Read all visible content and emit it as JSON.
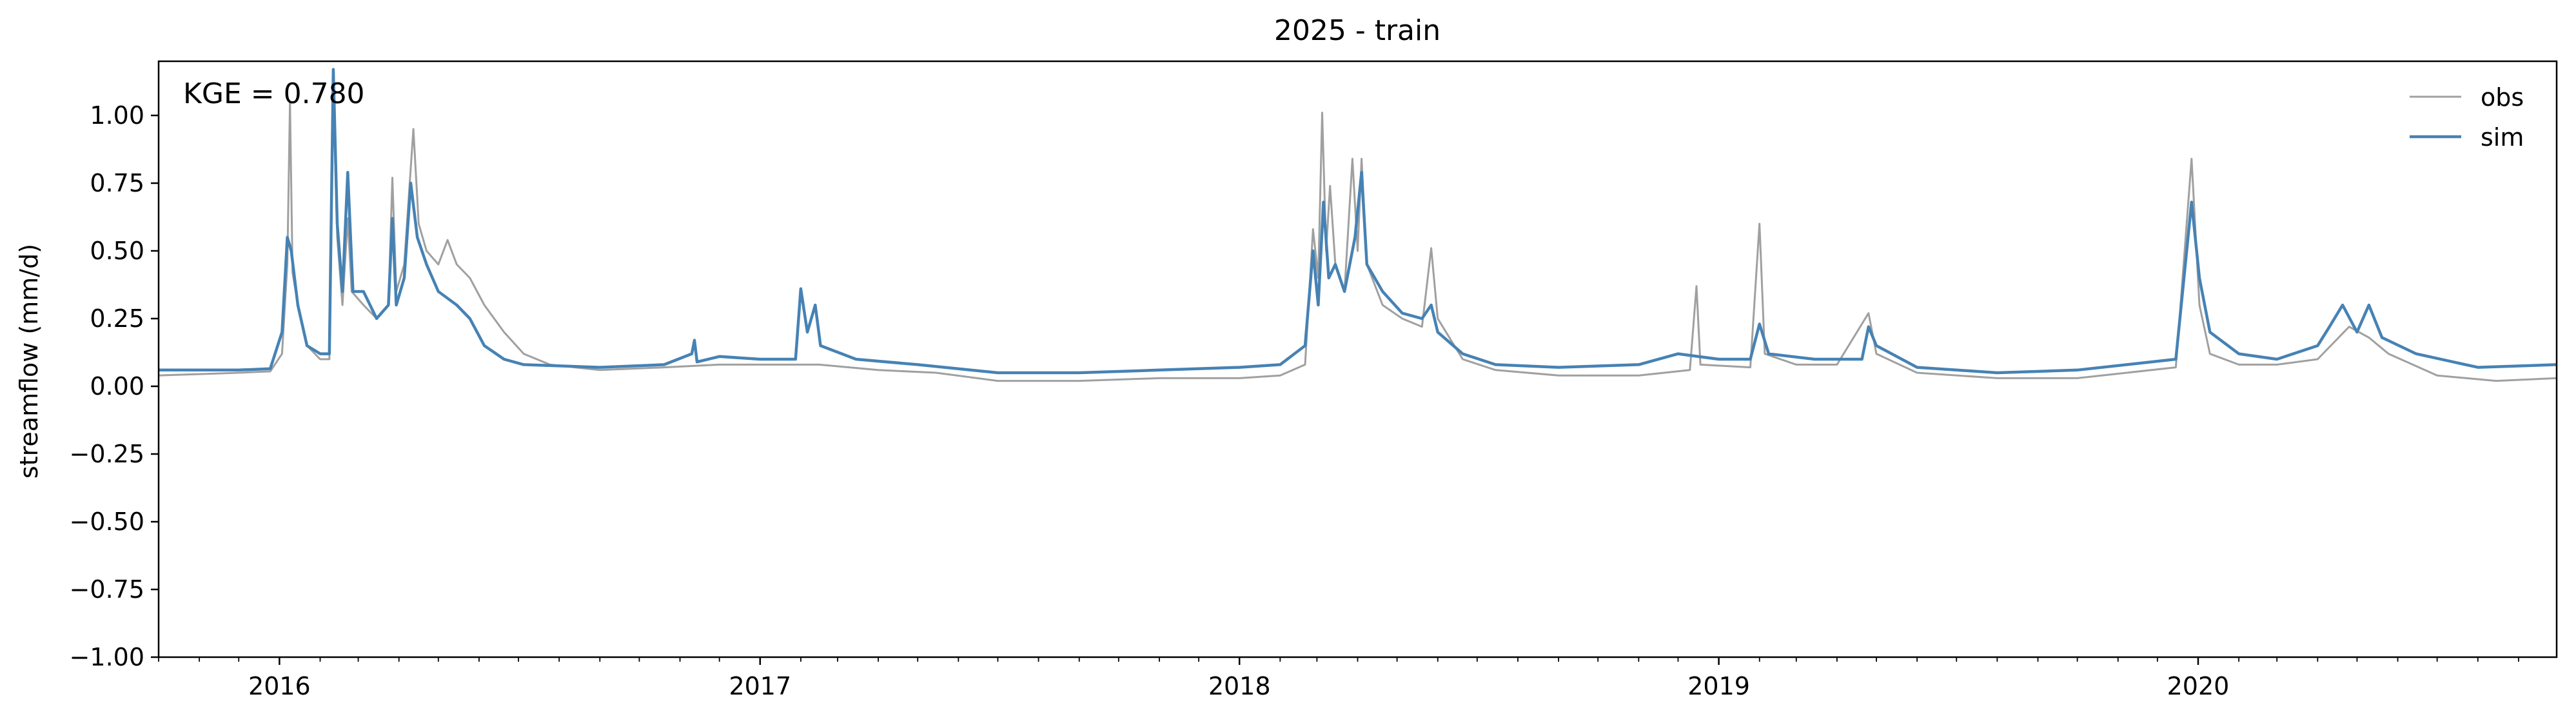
{
  "chart_data": {
    "type": "line",
    "title": "2025 - train",
    "xlabel": "",
    "ylabel": "streamflow (mm/d)",
    "annotation": "KGE = 0.780",
    "xlim": [
      "2015-10-01",
      "2020-09-30"
    ],
    "ylim": [
      -1.0,
      1.2
    ],
    "x_ticks": [
      "2016",
      "2017",
      "2018",
      "2019",
      "2020"
    ],
    "x_tick_dates": [
      "2016-01-01",
      "2017-01-01",
      "2018-01-01",
      "2019-01-01",
      "2020-01-01"
    ],
    "y_ticks": [
      "−1.00",
      "−0.75",
      "−0.50",
      "−0.25",
      "0.00",
      "0.25",
      "0.50",
      "0.75",
      "1.00"
    ],
    "y_tick_values": [
      -1.0,
      -0.75,
      -0.5,
      -0.25,
      0.0,
      0.25,
      0.5,
      0.75,
      1.0
    ],
    "legend_position": "top-right",
    "grid": false,
    "series": [
      {
        "name": "obs",
        "color": "#a0a0a0",
        "points": [
          [
            "2015-10-01",
            0.04
          ],
          [
            "2015-11-01",
            0.045
          ],
          [
            "2015-12-01",
            0.05
          ],
          [
            "2015-12-25",
            0.055
          ],
          [
            "2016-01-03",
            0.12
          ],
          [
            "2016-01-07",
            0.45
          ],
          [
            "2016-01-09",
            1.05
          ],
          [
            "2016-01-11",
            0.42
          ],
          [
            "2016-01-15",
            0.3
          ],
          [
            "2016-01-22",
            0.15
          ],
          [
            "2016-02-01",
            0.1
          ],
          [
            "2016-02-08",
            0.1
          ],
          [
            "2016-02-11",
            1.1
          ],
          [
            "2016-02-14",
            0.55
          ],
          [
            "2016-02-18",
            0.3
          ],
          [
            "2016-02-22",
            0.62
          ],
          [
            "2016-02-25",
            0.35
          ],
          [
            "2016-03-05",
            0.3
          ],
          [
            "2016-03-15",
            0.25
          ],
          [
            "2016-03-24",
            0.3
          ],
          [
            "2016-03-27",
            0.77
          ],
          [
            "2016-03-30",
            0.35
          ],
          [
            "2016-04-05",
            0.45
          ],
          [
            "2016-04-12",
            0.95
          ],
          [
            "2016-04-16",
            0.6
          ],
          [
            "2016-04-22",
            0.5
          ],
          [
            "2016-05-01",
            0.45
          ],
          [
            "2016-05-08",
            0.54
          ],
          [
            "2016-05-15",
            0.45
          ],
          [
            "2016-05-25",
            0.4
          ],
          [
            "2016-06-05",
            0.3
          ],
          [
            "2016-06-20",
            0.2
          ],
          [
            "2016-07-05",
            0.12
          ],
          [
            "2016-07-25",
            0.08
          ],
          [
            "2016-09-01",
            0.06
          ],
          [
            "2016-10-20",
            0.07
          ],
          [
            "2016-12-01",
            0.08
          ],
          [
            "2017-01-15",
            0.08
          ],
          [
            "2017-02-15",
            0.08
          ],
          [
            "2017-04-01",
            0.06
          ],
          [
            "2017-05-15",
            0.05
          ],
          [
            "2017-07-01",
            0.02
          ],
          [
            "2017-09-01",
            0.02
          ],
          [
            "2017-11-01",
            0.03
          ],
          [
            "2018-01-01",
            0.03
          ],
          [
            "2018-02-01",
            0.04
          ],
          [
            "2018-02-20",
            0.08
          ],
          [
            "2018-02-26",
            0.58
          ],
          [
            "2018-03-02",
            0.4
          ],
          [
            "2018-03-05",
            1.01
          ],
          [
            "2018-03-08",
            0.5
          ],
          [
            "2018-03-11",
            0.74
          ],
          [
            "2018-03-15",
            0.45
          ],
          [
            "2018-03-22",
            0.35
          ],
          [
            "2018-03-28",
            0.84
          ],
          [
            "2018-04-01",
            0.5
          ],
          [
            "2018-04-04",
            0.84
          ],
          [
            "2018-04-08",
            0.45
          ],
          [
            "2018-04-20",
            0.3
          ],
          [
            "2018-05-05",
            0.25
          ],
          [
            "2018-05-20",
            0.22
          ],
          [
            "2018-05-27",
            0.51
          ],
          [
            "2018-06-01",
            0.25
          ],
          [
            "2018-06-20",
            0.1
          ],
          [
            "2018-07-15",
            0.06
          ],
          [
            "2018-09-01",
            0.04
          ],
          [
            "2018-11-01",
            0.04
          ],
          [
            "2018-12-10",
            0.06
          ],
          [
            "2018-12-15",
            0.37
          ],
          [
            "2018-12-18",
            0.08
          ],
          [
            "2019-01-25",
            0.07
          ],
          [
            "2019-02-01",
            0.6
          ],
          [
            "2019-02-05",
            0.12
          ],
          [
            "2019-03-01",
            0.08
          ],
          [
            "2019-04-01",
            0.08
          ],
          [
            "2019-04-25",
            0.27
          ],
          [
            "2019-05-01",
            0.12
          ],
          [
            "2019-06-01",
            0.05
          ],
          [
            "2019-08-01",
            0.03
          ],
          [
            "2019-10-01",
            0.03
          ],
          [
            "2019-12-15",
            0.07
          ],
          [
            "2019-12-27",
            0.84
          ],
          [
            "2020-01-02",
            0.3
          ],
          [
            "2020-01-10",
            0.12
          ],
          [
            "2020-02-01",
            0.08
          ],
          [
            "2020-03-01",
            0.08
          ],
          [
            "2020-04-01",
            0.1
          ],
          [
            "2020-04-25",
            0.22
          ],
          [
            "2020-05-10",
            0.18
          ],
          [
            "2020-05-25",
            0.12
          ],
          [
            "2020-07-01",
            0.04
          ],
          [
            "2020-08-15",
            0.02
          ],
          [
            "2020-09-30",
            0.03
          ]
        ]
      },
      {
        "name": "sim",
        "color": "#4682b4",
        "points": [
          [
            "2015-10-01",
            0.06
          ],
          [
            "2015-11-01",
            0.06
          ],
          [
            "2015-12-01",
            0.06
          ],
          [
            "2015-12-25",
            0.065
          ],
          [
            "2016-01-03",
            0.2
          ],
          [
            "2016-01-07",
            0.55
          ],
          [
            "2016-01-10",
            0.5
          ],
          [
            "2016-01-15",
            0.3
          ],
          [
            "2016-01-22",
            0.15
          ],
          [
            "2016-02-01",
            0.12
          ],
          [
            "2016-02-08",
            0.12
          ],
          [
            "2016-02-11",
            1.17
          ],
          [
            "2016-02-14",
            0.6
          ],
          [
            "2016-02-18",
            0.35
          ],
          [
            "2016-02-22",
            0.79
          ],
          [
            "2016-02-26",
            0.35
          ],
          [
            "2016-03-05",
            0.35
          ],
          [
            "2016-03-15",
            0.25
          ],
          [
            "2016-03-24",
            0.3
          ],
          [
            "2016-03-27",
            0.62
          ],
          [
            "2016-03-30",
            0.3
          ],
          [
            "2016-04-05",
            0.4
          ],
          [
            "2016-04-10",
            0.75
          ],
          [
            "2016-04-15",
            0.55
          ],
          [
            "2016-04-22",
            0.45
          ],
          [
            "2016-05-01",
            0.35
          ],
          [
            "2016-05-15",
            0.3
          ],
          [
            "2016-05-25",
            0.25
          ],
          [
            "2016-06-05",
            0.15
          ],
          [
            "2016-06-20",
            0.1
          ],
          [
            "2016-07-05",
            0.08
          ],
          [
            "2016-09-01",
            0.07
          ],
          [
            "2016-10-20",
            0.08
          ],
          [
            "2016-11-10",
            0.12
          ],
          [
            "2016-11-12",
            0.17
          ],
          [
            "2016-11-14",
            0.09
          ],
          [
            "2016-12-01",
            0.11
          ],
          [
            "2017-01-01",
            0.1
          ],
          [
            "2017-01-28",
            0.1
          ],
          [
            "2017-02-01",
            0.36
          ],
          [
            "2017-02-06",
            0.2
          ],
          [
            "2017-02-12",
            0.3
          ],
          [
            "2017-02-16",
            0.15
          ],
          [
            "2017-03-15",
            0.1
          ],
          [
            "2017-05-01",
            0.08
          ],
          [
            "2017-07-01",
            0.05
          ],
          [
            "2017-09-01",
            0.05
          ],
          [
            "2017-11-01",
            0.06
          ],
          [
            "2018-01-01",
            0.07
          ],
          [
            "2018-02-01",
            0.08
          ],
          [
            "2018-02-20",
            0.15
          ],
          [
            "2018-02-26",
            0.5
          ],
          [
            "2018-03-02",
            0.3
          ],
          [
            "2018-03-06",
            0.68
          ],
          [
            "2018-03-10",
            0.4
          ],
          [
            "2018-03-15",
            0.45
          ],
          [
            "2018-03-22",
            0.35
          ],
          [
            "2018-03-30",
            0.55
          ],
          [
            "2018-04-04",
            0.79
          ],
          [
            "2018-04-08",
            0.45
          ],
          [
            "2018-04-20",
            0.35
          ],
          [
            "2018-05-05",
            0.27
          ],
          [
            "2018-05-20",
            0.25
          ],
          [
            "2018-05-27",
            0.3
          ],
          [
            "2018-06-01",
            0.2
          ],
          [
            "2018-06-20",
            0.12
          ],
          [
            "2018-07-15",
            0.08
          ],
          [
            "2018-09-01",
            0.07
          ],
          [
            "2018-11-01",
            0.08
          ],
          [
            "2018-12-01",
            0.12
          ],
          [
            "2019-01-01",
            0.1
          ],
          [
            "2019-01-25",
            0.1
          ],
          [
            "2019-02-01",
            0.23
          ],
          [
            "2019-02-08",
            0.12
          ],
          [
            "2019-03-15",
            0.1
          ],
          [
            "2019-04-20",
            0.1
          ],
          [
            "2019-04-25",
            0.22
          ],
          [
            "2019-05-01",
            0.15
          ],
          [
            "2019-06-01",
            0.07
          ],
          [
            "2019-08-01",
            0.05
          ],
          [
            "2019-10-01",
            0.06
          ],
          [
            "2019-12-15",
            0.1
          ],
          [
            "2019-12-27",
            0.68
          ],
          [
            "2020-01-02",
            0.4
          ],
          [
            "2020-01-10",
            0.2
          ],
          [
            "2020-02-01",
            0.12
          ],
          [
            "2020-03-01",
            0.1
          ],
          [
            "2020-04-01",
            0.15
          ],
          [
            "2020-04-10",
            0.22
          ],
          [
            "2020-04-20",
            0.3
          ],
          [
            "2020-05-01",
            0.2
          ],
          [
            "2020-05-10",
            0.3
          ],
          [
            "2020-05-20",
            0.18
          ],
          [
            "2020-06-15",
            0.12
          ],
          [
            "2020-08-01",
            0.07
          ],
          [
            "2020-09-30",
            0.08
          ]
        ]
      }
    ]
  }
}
